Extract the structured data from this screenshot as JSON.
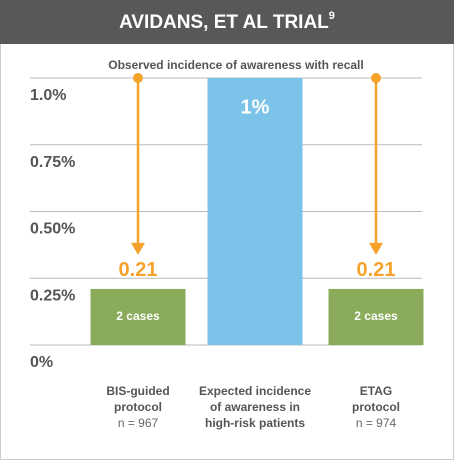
{
  "chart_data": {
    "type": "bar",
    "title": "AVIDANS, ET AL TRIAL",
    "title_sup": "9",
    "subtitle": "Observed incidence of awareness with recall",
    "categories": [
      [
        "BIS-guided",
        "protocol",
        "n = 967"
      ],
      [
        "Expected incidence",
        "of awareness in",
        "high-risk patients"
      ],
      [
        "ETAG",
        "protocol",
        "n = 974"
      ]
    ],
    "values": [
      0.21,
      1,
      0.21
    ],
    "value_labels": [
      "0.21",
      "1%",
      "0.21"
    ],
    "bar_texts": [
      "2 cases",
      null,
      "2 cases"
    ],
    "colors": [
      "#8aab5a",
      "#7cc3ea",
      "#8aab5a"
    ],
    "arrows": [
      true,
      false,
      true
    ],
    "arrow_color": "#f5a22b",
    "ylim": [
      0,
      1
    ],
    "yticks": [
      {
        "value": 0,
        "label": "0%"
      },
      {
        "value": 0.25,
        "label": "0.25%"
      },
      {
        "value": 0.5,
        "label": "0.50%"
      },
      {
        "value": 0.75,
        "label": "0.75%"
      },
      {
        "value": 1,
        "label": "1.0%"
      }
    ],
    "grid": true
  }
}
